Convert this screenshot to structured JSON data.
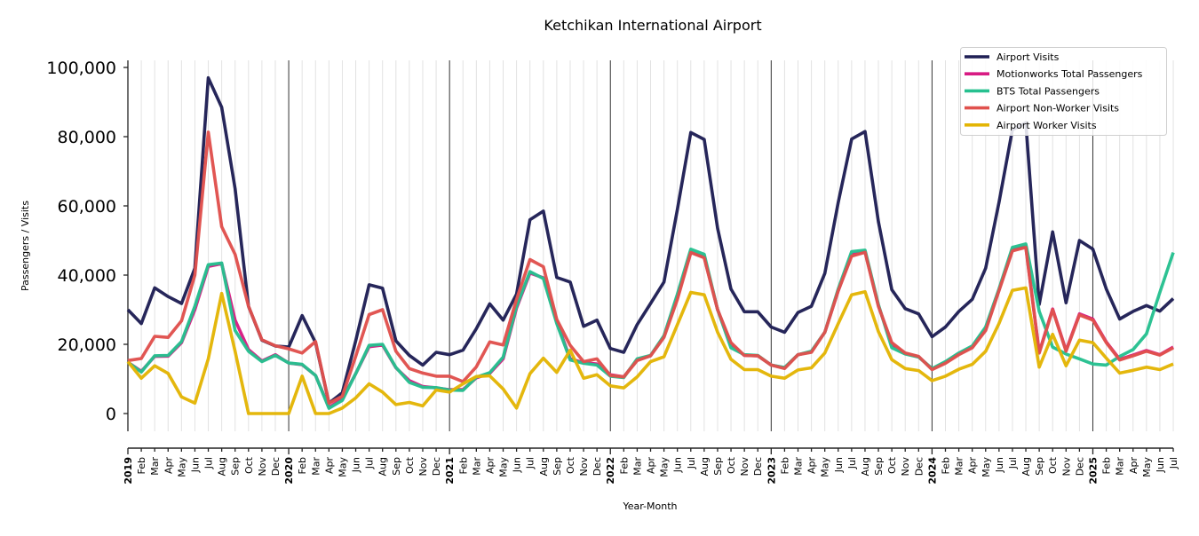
{
  "chart_data": {
    "type": "line",
    "title": "Ketchikan International Airport",
    "xlabel": "Year-Month",
    "ylabel": "Passengers / Visits",
    "ylim": [
      -5000,
      102000
    ],
    "y_ticks": [
      0,
      20000,
      40000,
      60000,
      80000,
      100000
    ],
    "y_tick_labels": [
      "0",
      "20,000",
      "40,000",
      "60,000",
      "80,000",
      "100,000"
    ],
    "legend_position": "top-right",
    "x_start": "2019-01",
    "month_labels": [
      "Jan",
      "Feb",
      "Mar",
      "Apr",
      "May",
      "Jun",
      "Jul",
      "Aug",
      "Sep",
      "Oct",
      "Nov",
      "Dec"
    ],
    "year_labels": [
      "2019",
      "2020",
      "2021",
      "2022",
      "2023",
      "2024",
      "2025"
    ],
    "n_months": 79,
    "series": [
      {
        "name": "Airport Visits",
        "color": "#1f1f55",
        "values": [
          30000,
          26000,
          36300,
          33800,
          31800,
          42000,
          97000,
          88500,
          65000,
          31000,
          21200,
          19500,
          19200,
          28300,
          20500,
          3000,
          6000,
          21000,
          37200,
          36200,
          21000,
          16800,
          14000,
          17700,
          17000,
          18300,
          24500,
          31700,
          27000,
          34500,
          56000,
          58500,
          39300,
          38000,
          25200,
          27000,
          18800,
          17700,
          25700,
          31800,
          38000,
          59000,
          81200,
          79200,
          53500,
          36000,
          29400,
          29400,
          25000,
          23500,
          29200,
          31000,
          40500,
          61000,
          79300,
          81500,
          55500,
          35800,
          30300,
          28800,
          22200,
          25000,
          29500,
          33000,
          42000,
          61000,
          82000,
          84000,
          31500,
          52500,
          32000,
          50000,
          47500,
          36000,
          27300,
          29500,
          31200,
          29600,
          33200
        ]
      },
      {
        "name": "Motionworks Total Passengers",
        "color": "#d81b83",
        "values": [
          14800,
          12200,
          16500,
          16600,
          20500,
          30000,
          42500,
          43300,
          27000,
          18500,
          15200,
          17000,
          14600,
          14100,
          11000,
          1800,
          4200,
          11500,
          19300,
          19800,
          13200,
          9500,
          7800,
          7400,
          6900,
          6900,
          10300,
          11600,
          15800,
          30500,
          40600,
          39200,
          26500,
          15800,
          14700,
          14300,
          11200,
          10600,
          15500,
          16700,
          22300,
          34000,
          46500,
          45200,
          30000,
          20000,
          16800,
          16700,
          14000,
          13200,
          17000,
          17900,
          23500,
          35500,
          45900,
          46800,
          31200,
          20000,
          17300,
          16400,
          12900,
          14800,
          17300,
          19200,
          24500,
          35700,
          47300,
          48300,
          17700,
          30200,
          18200,
          28800,
          27300,
          20700,
          15700,
          16900,
          18200,
          17000,
          19200
        ]
      },
      {
        "name": "BTS Total Passengers",
        "color": "#26c08f",
        "values": [
          14800,
          12000,
          16700,
          16800,
          20800,
          31000,
          43000,
          43500,
          24000,
          18000,
          15000,
          16800,
          14600,
          14200,
          11000,
          1500,
          3800,
          11500,
          19700,
          20000,
          13300,
          9000,
          7600,
          7500,
          6800,
          6700,
          10500,
          11800,
          16300,
          31000,
          41000,
          39000,
          26000,
          15500,
          14500,
          14000,
          10800,
          10400,
          15800,
          16800,
          22500,
          34500,
          47500,
          46000,
          30000,
          19000,
          17000,
          16800,
          14000,
          13300,
          17000,
          18000,
          23500,
          36000,
          46800,
          47200,
          31500,
          19000,
          17200,
          16300,
          13000,
          15000,
          17500,
          19500,
          25000,
          36000,
          48000,
          49000,
          29500,
          19200,
          17200,
          15800,
          14300,
          14000,
          16500,
          18500,
          23000,
          35000,
          46500
        ]
      },
      {
        "name": "Airport Non-Worker Visits",
        "color": "#e0514d",
        "values": [
          15300,
          15900,
          22300,
          22000,
          26800,
          40000,
          81300,
          54000,
          46000,
          31000,
          21300,
          19600,
          18700,
          17500,
          20800,
          3000,
          5000,
          16500,
          28600,
          30000,
          18000,
          13000,
          11700,
          10800,
          10800,
          9200,
          13500,
          20700,
          19800,
          33000,
          44500,
          42400,
          27200,
          19700,
          15000,
          15800,
          11000,
          10600,
          15300,
          16700,
          22000,
          33000,
          46500,
          45000,
          30000,
          20500,
          16800,
          16700,
          14000,
          13000,
          17000,
          17700,
          23500,
          35500,
          45500,
          46600,
          31000,
          20500,
          17500,
          16500,
          12700,
          14500,
          17000,
          19000,
          24000,
          35500,
          47000,
          48000,
          17500,
          30000,
          18000,
          28500,
          27000,
          20500,
          15500,
          16700,
          18000,
          16900,
          19000
        ]
      },
      {
        "name": "Airport Worker Visits",
        "color": "#e3b505",
        "values": [
          15000,
          10200,
          13800,
          11600,
          4800,
          3000,
          15800,
          34700,
          18000,
          0,
          0,
          0,
          0,
          10800,
          0,
          0,
          1600,
          4500,
          8600,
          6200,
          2600,
          3200,
          2200,
          6800,
          6200,
          8600,
          10700,
          10900,
          7100,
          1600,
          11500,
          16000,
          11900,
          18300,
          10200,
          11200,
          8000,
          7400,
          10600,
          15000,
          16400,
          25700,
          35000,
          34300,
          23500,
          15700,
          12700,
          12700,
          10800,
          10200,
          12600,
          13200,
          17500,
          26000,
          34300,
          35200,
          23700,
          15600,
          13000,
          12400,
          9500,
          10800,
          12800,
          14200,
          18000,
          26000,
          35600,
          36300,
          13400,
          22900,
          13800,
          21200,
          20500,
          16000,
          11700,
          12500,
          13400,
          12700,
          14300
        ]
      }
    ]
  }
}
